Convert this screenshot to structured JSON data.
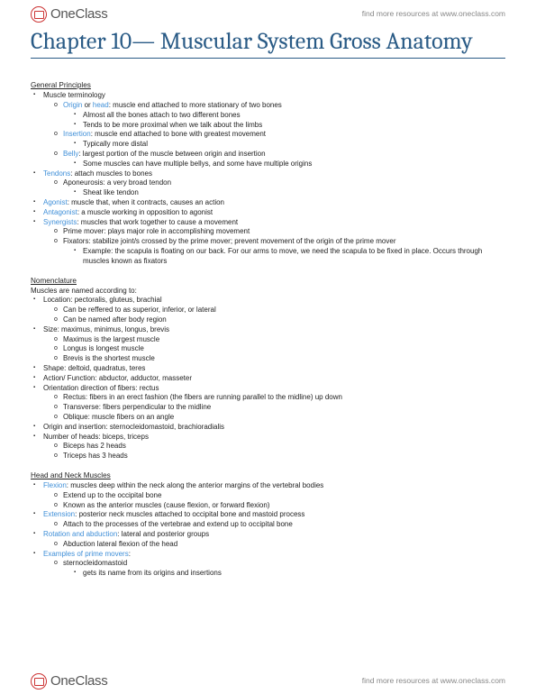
{
  "brand": {
    "name": "OneClass",
    "tagline": "find more resources at www.oneclass.com"
  },
  "title": "Chapter 10— Muscular System Gross Anatomy",
  "colors": {
    "heading": "#2a5b86",
    "term": "#3f8fd8",
    "rule": "#2a5b86",
    "text": "#222",
    "meta": "#888"
  },
  "typography": {
    "body_pt": 8,
    "title_pt": 26,
    "title_family": "Cambria serif"
  },
  "sections": [
    {
      "heading": "General Principles",
      "items": [
        {
          "text": "Muscle terminology",
          "children": [
            {
              "text": "",
              "term": "Origin",
              "after": " or ",
              "term2": "head",
              "after2": ": muscle end attached to more stationary of two bones",
              "children": [
                {
                  "text": "Almost all the bones attach to two different bones"
                },
                {
                  "text": "Tends to be more proximal when we talk about the limbs"
                }
              ]
            },
            {
              "term": "Insertion",
              "after": ": muscle end attached to bone with greatest movement",
              "children": [
                {
                  "text": "Typically more distal"
                }
              ]
            },
            {
              "term": "Belly",
              "after": ": largest portion of the muscle between origin and insertion",
              "children": [
                {
                  "text": "Some muscles can have multiple bellys, and some have multiple origins"
                }
              ]
            }
          ]
        },
        {
          "term": "Tendons",
          "after": ": attach muscles to bones",
          "children": [
            {
              "text": "Aponeurosis: a very broad tendon",
              "children": [
                {
                  "text": "Sheat like tendon"
                }
              ]
            }
          ]
        },
        {
          "term": "Agonist",
          "after": ": muscle that, when it contracts, causes an action"
        },
        {
          "term": "Antagonist",
          "after": ": a muscle working in opposition to agonist"
        },
        {
          "term": "Synergists",
          "after": ": muscles that work together to cause a movement",
          "children": [
            {
              "text": "Prime mover: plays major role in accomplishing movement"
            },
            {
              "text": "Fixators: stabilize joint/s crossed by the prime mover; prevent movement of the origin of the prime mover",
              "children": [
                {
                  "text": "Example: the scapula is floating on our back. For our arms to move, we need the scapula to be fixed in place. Occurs through muscles known as fixators"
                }
              ]
            }
          ]
        }
      ]
    },
    {
      "heading": "Nomenclature",
      "intro": "Muscles are named according to:",
      "items": [
        {
          "text": "Location: pectoralis, gluteus, brachial",
          "children": [
            {
              "text": "Can be reffered to as superior, inferior, or lateral"
            },
            {
              "text": "Can be named after body region"
            }
          ]
        },
        {
          "text": "Size: maximus, minimus, longus, brevis",
          "children": [
            {
              "text": "Maximus is the largest muscle"
            },
            {
              "text": "Longus is longest muscle"
            },
            {
              "text": "Brevis is the shortest muscle"
            }
          ]
        },
        {
          "text": "Shape: deltoid, quadratus, teres"
        },
        {
          "text": "Action/ Function: abductor, adductor, masseter"
        },
        {
          "text": "Orientation direction of fibers: rectus",
          "children": [
            {
              "text": "Rectus: fibers in an erect fashion (the fibers are running parallel to the midline)  up down"
            },
            {
              "text": "Transverse: fibers perpendicular to the midline"
            },
            {
              "text": "Oblique: muscle fibers on an angle"
            }
          ]
        },
        {
          "text": "Origin and insertion: sternocleidomastoid, brachioradialis"
        },
        {
          "text": "Number of heads: biceps, triceps",
          "children": [
            {
              "text": "Biceps has 2 heads"
            },
            {
              "text": "Triceps has 3 heads"
            }
          ]
        }
      ]
    },
    {
      "heading": "Head and Neck Muscles",
      "items": [
        {
          "term": "Flexion",
          "after": ": muscles deep within the neck along the anterior margins of the vertebral bodies",
          "children": [
            {
              "text": "Extend up to the occipital bone"
            },
            {
              "text": "Known as the anterior muscles (cause flexion, or forward flexion)"
            }
          ]
        },
        {
          "term": "Extension",
          "after": ": posterior neck muscles attached to occipital bone and mastoid process",
          "children": [
            {
              "text": "Attach to the processes of the vertebrae and extend up to occipital bone"
            }
          ]
        },
        {
          "term": "Rotation and abduction",
          "after": ": lateral and posterior groups",
          "children": [
            {
              "text": "Abduction  lateral flexion of the head"
            }
          ]
        },
        {
          "term": "Examples of prime movers",
          "after": ":",
          "children": [
            {
              "text": "sternocleidomastoid",
              "children": [
                {
                  "text": "gets its name from its origins and insertions"
                }
              ]
            }
          ]
        }
      ]
    }
  ]
}
